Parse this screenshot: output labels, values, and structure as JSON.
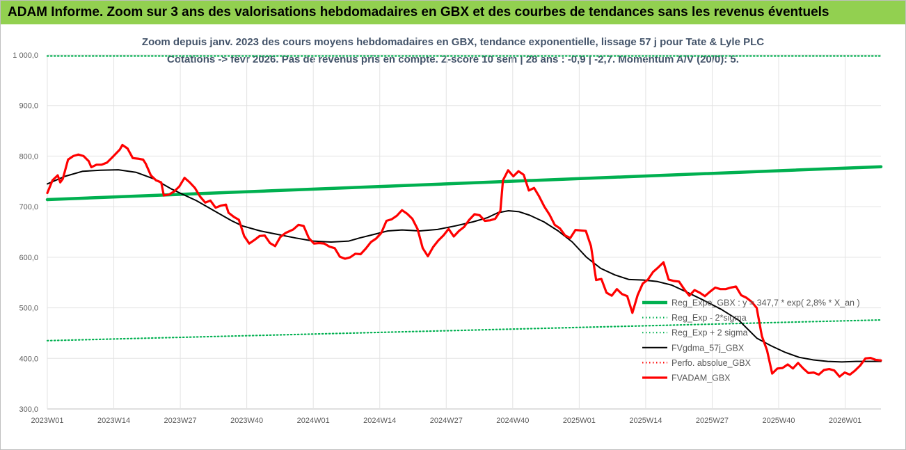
{
  "banner": {
    "text": "ADAM Informe. Zoom sur 3 ans des valorisations hebdomadaires en GBX et des courbes de tendances sans les revenus éventuels",
    "color": "#92d050"
  },
  "chart_data": {
    "type": "line",
    "title_lines": [
      "Zoom depuis janv. 2023 des cours moyens hebdomadaires en GBX, tendance exponentielle, lissage 57 j pour Tate & Lyle PLC",
      "Cotations -> févr 2026.  Pas de revenus pris en compte. Z-score 10 sem | 28 ans : -0,9 | -2,7. Momentum A/V (20/0): 5."
    ],
    "x_tick_labels": [
      "2023W01",
      "2023W14",
      "2023W27",
      "2023W40",
      "2024W01",
      "2024W14",
      "2024W27",
      "2024W40",
      "2025W01",
      "2025W14",
      "2025W27",
      "2025W40",
      "2026W01"
    ],
    "x_tick_index": [
      0,
      13,
      26,
      39,
      52,
      65,
      78,
      91,
      104,
      117,
      130,
      143,
      156
    ],
    "x_count": 164,
    "y_tick_labels": [
      "300,0",
      "400,0",
      "500,0",
      "600,0",
      "700,0",
      "800,0",
      "900,0",
      "1 000,0"
    ],
    "ylim": [
      300,
      1000
    ],
    "grid": true,
    "legend_position": "bottom-right",
    "series": [
      {
        "name": "Reg_Expo_GBX : y = 347,7 * exp( 2,8% *  X_an )",
        "color": "#00b050",
        "style": "thick",
        "points": [
          [
            0,
            714
          ],
          [
            163,
            779
          ]
        ]
      },
      {
        "name": "Reg_Exp - 2*sigma",
        "color": "#00b050",
        "style": "dotted",
        "points": [
          [
            0,
            435
          ],
          [
            163,
            476
          ]
        ]
      },
      {
        "name": "Reg_Exp + 2 sigma",
        "color": "#00b050",
        "style": "dotted",
        "points": [
          [
            0,
            998
          ],
          [
            163,
            998
          ]
        ]
      },
      {
        "name": "FVgdma_57j_GBX",
        "color": "#000000",
        "style": "solid",
        "points": [
          [
            0,
            745
          ],
          [
            5,
            760
          ],
          [
            10,
            770
          ],
          [
            15,
            772
          ],
          [
            20,
            773
          ],
          [
            25,
            768
          ],
          [
            30,
            755
          ],
          [
            35,
            735
          ],
          [
            38,
            725
          ],
          [
            42,
            712
          ],
          [
            45,
            700
          ],
          [
            48,
            688
          ],
          [
            52,
            672
          ],
          [
            55,
            662
          ],
          [
            60,
            652
          ],
          [
            65,
            645
          ],
          [
            70,
            638
          ],
          [
            75,
            632
          ],
          [
            80,
            630
          ],
          [
            85,
            632
          ],
          [
            88,
            638
          ],
          [
            92,
            645
          ],
          [
            96,
            652
          ],
          [
            100,
            654
          ],
          [
            105,
            652
          ],
          [
            110,
            655
          ],
          [
            115,
            662
          ],
          [
            120,
            670
          ],
          [
            124,
            678
          ],
          [
            127,
            688
          ],
          [
            130,
            692
          ],
          [
            133,
            690
          ],
          [
            136,
            683
          ],
          [
            140,
            670
          ],
          [
            144,
            652
          ],
          [
            148,
            630
          ],
          [
            152,
            600
          ],
          [
            156,
            578
          ],
          [
            160,
            565
          ],
          [
            164,
            556
          ],
          [
            168,
            555
          ],
          [
            172,
            552
          ],
          [
            176,
            545
          ],
          [
            180,
            532
          ],
          [
            185,
            515
          ],
          [
            190,
            497
          ],
          [
            195,
            475
          ],
          [
            200,
            440
          ],
          [
            204,
            425
          ],
          [
            208,
            412
          ],
          [
            212,
            402
          ],
          [
            216,
            397
          ],
          [
            220,
            394
          ],
          [
            224,
            393
          ],
          [
            228,
            394
          ],
          [
            232,
            394
          ],
          [
            235,
            394
          ]
        ]
      },
      {
        "name": "Perfo. absolue_GBX",
        "color": "#ff0000",
        "style": "dotted",
        "points": []
      },
      {
        "name": "FVADAM_GBX",
        "color": "#ff0000",
        "style": "thick",
        "points": [
          [
            0,
            727
          ],
          [
            2,
            752
          ],
          [
            4,
            762
          ],
          [
            5,
            748
          ],
          [
            6,
            755
          ],
          [
            8,
            793
          ],
          [
            10,
            800
          ],
          [
            12,
            803
          ],
          [
            14,
            800
          ],
          [
            16,
            790
          ],
          [
            17,
            778
          ],
          [
            19,
            783
          ],
          [
            21,
            783
          ],
          [
            23,
            787
          ],
          [
            25,
            797
          ],
          [
            28,
            813
          ],
          [
            29,
            822
          ],
          [
            31,
            815
          ],
          [
            33,
            796
          ],
          [
            35,
            795
          ],
          [
            37,
            793
          ],
          [
            38,
            785
          ],
          [
            40,
            762
          ],
          [
            42,
            752
          ],
          [
            44,
            748
          ],
          [
            45,
            722
          ],
          [
            47,
            724
          ],
          [
            49,
            730
          ],
          [
            51,
            740
          ],
          [
            53,
            757
          ],
          [
            55,
            748
          ],
          [
            57,
            737
          ],
          [
            59,
            720
          ],
          [
            61,
            708
          ],
          [
            63,
            712
          ],
          [
            65,
            698
          ],
          [
            67,
            702
          ],
          [
            69,
            704
          ],
          [
            70,
            688
          ],
          [
            72,
            680
          ],
          [
            74,
            674
          ],
          [
            76,
            642
          ],
          [
            78,
            627
          ],
          [
            80,
            634
          ],
          [
            82,
            642
          ],
          [
            84,
            643
          ],
          [
            86,
            628
          ],
          [
            88,
            622
          ],
          [
            90,
            640
          ],
          [
            92,
            648
          ],
          [
            95,
            655
          ],
          [
            97,
            664
          ],
          [
            99,
            662
          ],
          [
            101,
            638
          ],
          [
            103,
            627
          ],
          [
            105,
            628
          ],
          [
            107,
            627
          ],
          [
            109,
            621
          ],
          [
            111,
            618
          ],
          [
            113,
            601
          ],
          [
            115,
            597
          ],
          [
            117,
            600
          ],
          [
            119,
            607
          ],
          [
            121,
            606
          ],
          [
            123,
            617
          ],
          [
            125,
            630
          ],
          [
            127,
            637
          ],
          [
            129,
            648
          ],
          [
            131,
            672
          ],
          [
            133,
            675
          ],
          [
            135,
            682
          ],
          [
            137,
            693
          ],
          [
            139,
            686
          ],
          [
            141,
            676
          ],
          [
            143,
            656
          ],
          [
            145,
            618
          ],
          [
            147,
            602
          ],
          [
            149,
            620
          ],
          [
            151,
            633
          ],
          [
            153,
            643
          ],
          [
            155,
            656
          ],
          [
            157,
            641
          ],
          [
            159,
            652
          ],
          [
            161,
            660
          ],
          [
            163,
            674
          ],
          [
            165,
            685
          ],
          [
            167,
            683
          ],
          [
            169,
            672
          ],
          [
            171,
            673
          ],
          [
            173,
            676
          ],
          [
            175,
            692
          ],
          [
            176,
            752
          ],
          [
            178,
            772
          ],
          [
            180,
            760
          ],
          [
            182,
            770
          ],
          [
            184,
            763
          ],
          [
            186,
            732
          ],
          [
            188,
            737
          ],
          [
            190,
            720
          ],
          [
            192,
            700
          ],
          [
            194,
            684
          ],
          [
            196,
            664
          ],
          [
            198,
            657
          ],
          [
            200,
            643
          ],
          [
            202,
            638
          ],
          [
            204,
            654
          ],
          [
            206,
            653
          ],
          [
            208,
            652
          ],
          [
            210,
            622
          ],
          [
            212,
            555
          ],
          [
            214,
            557
          ],
          [
            216,
            530
          ],
          [
            218,
            524
          ],
          [
            220,
            537
          ],
          [
            222,
            527
          ],
          [
            224,
            523
          ],
          [
            226,
            490
          ],
          [
            228,
            525
          ],
          [
            230,
            548
          ],
          [
            232,
            556
          ],
          [
            234,
            571
          ],
          [
            236,
            580
          ],
          [
            238,
            590
          ],
          [
            240,
            556
          ],
          [
            242,
            553
          ],
          [
            244,
            552
          ],
          [
            246,
            537
          ],
          [
            248,
            524
          ],
          [
            250,
            535
          ],
          [
            252,
            530
          ],
          [
            254,
            523
          ],
          [
            256,
            532
          ],
          [
            258,
            540
          ],
          [
            260,
            537
          ],
          [
            262,
            537
          ],
          [
            264,
            540
          ],
          [
            266,
            542
          ],
          [
            268,
            525
          ],
          [
            270,
            520
          ],
          [
            272,
            512
          ],
          [
            274,
            500
          ],
          [
            276,
            444
          ],
          [
            278,
            416
          ],
          [
            280,
            370
          ],
          [
            282,
            380
          ],
          [
            284,
            381
          ],
          [
            286,
            388
          ],
          [
            288,
            380
          ],
          [
            290,
            391
          ],
          [
            292,
            380
          ],
          [
            294,
            371
          ],
          [
            296,
            372
          ],
          [
            298,
            368
          ],
          [
            300,
            377
          ],
          [
            302,
            379
          ],
          [
            304,
            376
          ],
          [
            306,
            364
          ],
          [
            308,
            372
          ],
          [
            310,
            368
          ],
          [
            312,
            376
          ],
          [
            314,
            386
          ],
          [
            316,
            400
          ],
          [
            318,
            401
          ],
          [
            320,
            397
          ],
          [
            322,
            396
          ]
        ]
      }
    ]
  }
}
